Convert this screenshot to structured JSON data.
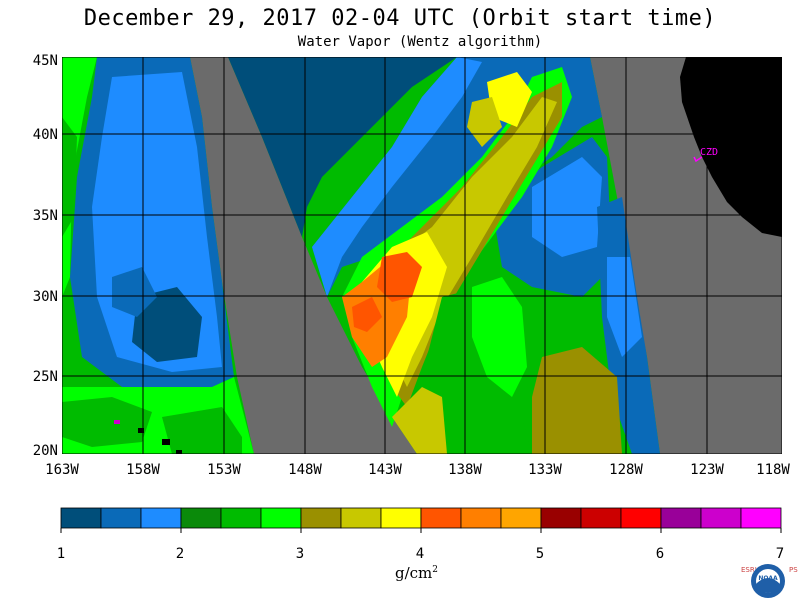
{
  "title": "December 29, 2017  02-04 UTC  (Orbit start time)",
  "subtitle": "Water Vapor (Wentz algorithm)",
  "map": {
    "lat_labels": [
      "45N",
      "40N",
      "35N",
      "30N",
      "25N",
      "20N"
    ],
    "lon_labels": [
      "163W",
      "158W",
      "153W",
      "148W",
      "143W",
      "138W",
      "133W",
      "128W",
      "123W",
      "118W"
    ],
    "station_label": "CZD",
    "colors": {
      "no_data": "#6b6b6b",
      "land": "#000000",
      "grid": "#000000",
      "station": "#ff00ff"
    }
  },
  "colorbar": {
    "tick_labels": [
      "1",
      "2",
      "3",
      "4",
      "5",
      "6",
      "7"
    ],
    "colors": [
      "#004e7a",
      "#0a6ab8",
      "#1e8cff",
      "#0a8a0a",
      "#00bb00",
      "#00ff00",
      "#9a9000",
      "#c8c800",
      "#ffff00",
      "#ff5500",
      "#ff7f00",
      "#ffa500",
      "#990000",
      "#cc0000",
      "#ff0000",
      "#990099",
      "#cc00cc",
      "#ff00ff"
    ],
    "units_base": "g/cm",
    "units_exp": "2"
  },
  "logo": {
    "left_letters": "ESRL",
    "right_letters": "PSD",
    "badge": "NOAA"
  }
}
